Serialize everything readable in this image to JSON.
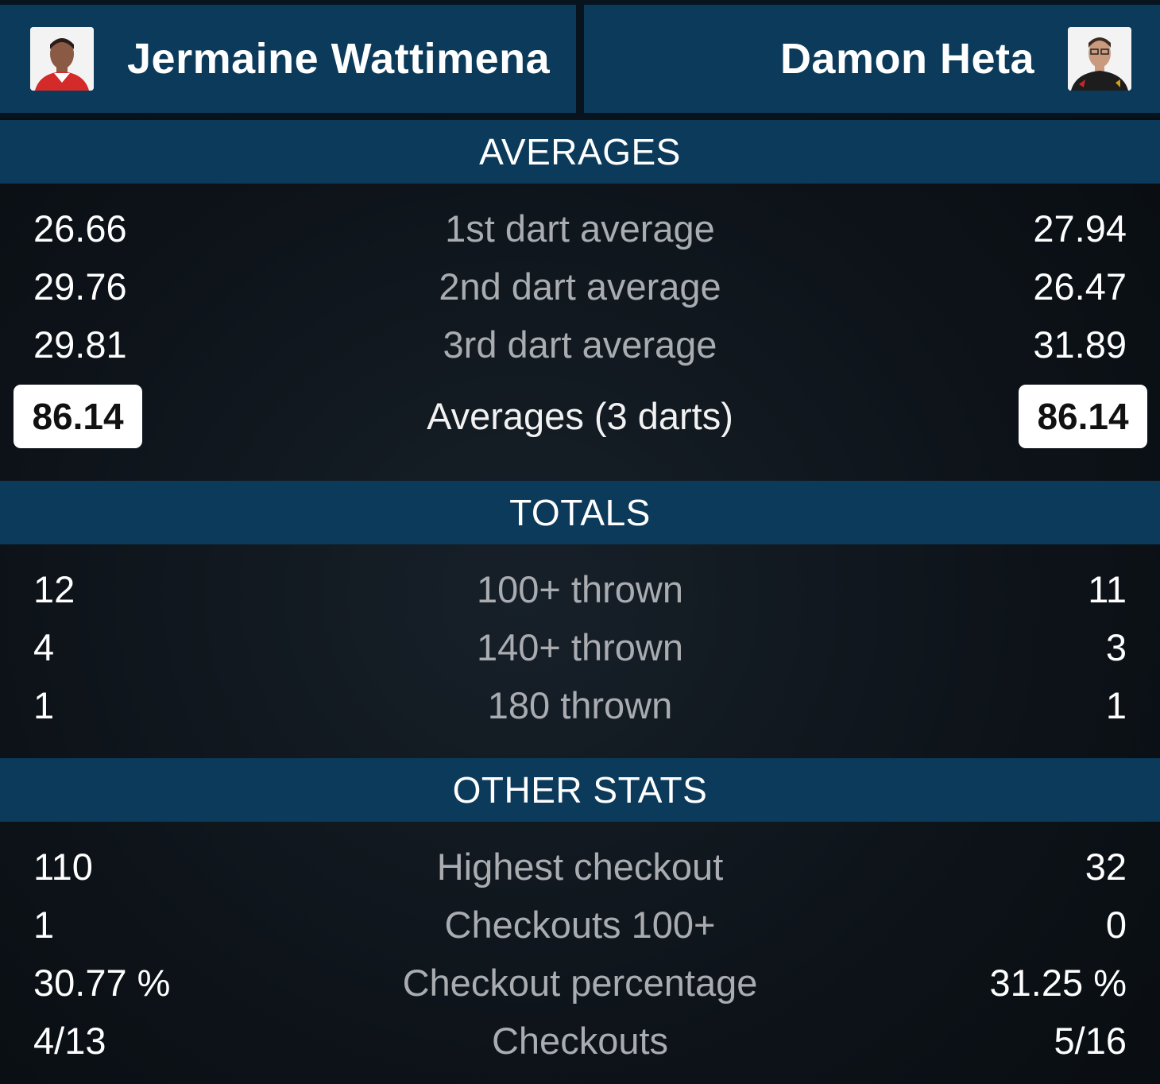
{
  "header": {
    "player_left": {
      "name": "Jermaine Wattimena",
      "avatar": "player-photo"
    },
    "player_right": {
      "name": "Damon Heta",
      "avatar": "player-photo"
    }
  },
  "sections": {
    "averages": {
      "title": "AVERAGES",
      "rows": [
        {
          "label": "1st dart average",
          "left": "26.66",
          "right": "27.94"
        },
        {
          "label": "2nd dart average",
          "left": "29.76",
          "right": "26.47"
        },
        {
          "label": "3rd dart average",
          "left": "29.81",
          "right": "31.89"
        }
      ],
      "summary": {
        "label": "Averages (3 darts)",
        "left": "86.14",
        "right": "86.14"
      }
    },
    "totals": {
      "title": "TOTALS",
      "rows": [
        {
          "label": "100+ thrown",
          "left": "12",
          "right": "11"
        },
        {
          "label": "140+ thrown",
          "left": "4",
          "right": "3"
        },
        {
          "label": "180 thrown",
          "left": "1",
          "right": "1"
        }
      ]
    },
    "other": {
      "title": "OTHER STATS",
      "rows": [
        {
          "label": "Highest checkout",
          "left": "110",
          "right": "32"
        },
        {
          "label": "Checkouts 100+",
          "left": "1",
          "right": "0"
        },
        {
          "label": "Checkout percentage",
          "left": "30.77 %",
          "right": "31.25 %"
        },
        {
          "label": "Checkouts",
          "left": "4/13",
          "right": "5/16"
        }
      ]
    }
  },
  "colors": {
    "header_bar": "#0b3a5b",
    "background": "#0d1319",
    "label_text": "#a9acb0",
    "value_text": "#ffffff"
  }
}
